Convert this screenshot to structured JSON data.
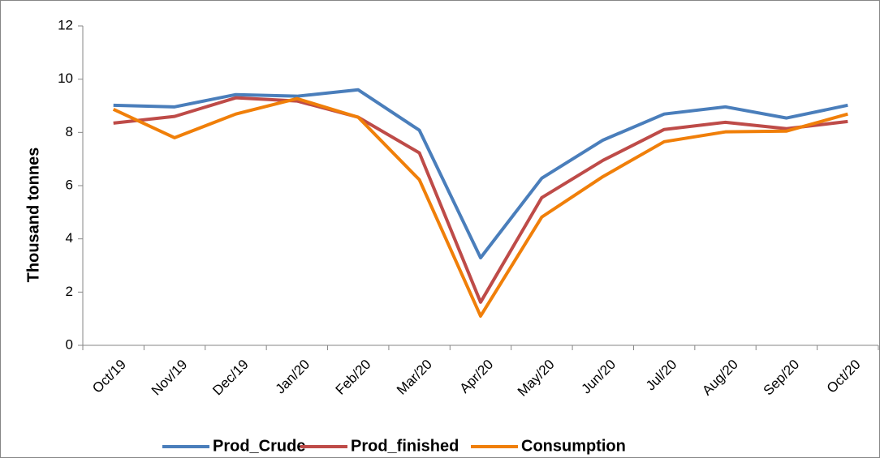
{
  "chart_data": {
    "type": "line",
    "y_label": "Thousand tonnes",
    "categories": [
      "Oct/19",
      "Nov/19",
      "Dec/19",
      "Jan/20",
      "Feb/20",
      "Mar/20",
      "Apr/20",
      "May/20",
      "Jun/20",
      "Jul/20",
      "Aug/20",
      "Sep/20",
      "Oct/20"
    ],
    "series": [
      {
        "name": "Prod_Crude",
        "color": "#4a7ebb",
        "values": [
          9.02,
          8.96,
          9.42,
          9.36,
          9.6,
          8.08,
          3.29,
          6.28,
          7.71,
          8.69,
          8.96,
          8.54,
          9.02
        ]
      },
      {
        "name": "Prod_finished",
        "color": "#be4b48",
        "values": [
          8.35,
          8.6,
          9.3,
          9.18,
          8.57,
          7.23,
          1.62,
          5.55,
          6.95,
          8.11,
          8.38,
          8.14,
          8.41
        ]
      },
      {
        "name": "Consumption",
        "color": "#f07f09",
        "values": [
          8.87,
          7.8,
          8.69,
          9.27,
          8.57,
          6.22,
          1.1,
          4.82,
          6.34,
          7.65,
          8.02,
          8.05,
          8.69
        ]
      }
    ],
    "ylim": [
      0,
      12
    ],
    "yticks": [
      0,
      2,
      4,
      6,
      8,
      10,
      12
    ],
    "grid": false,
    "legend": "bottom"
  }
}
